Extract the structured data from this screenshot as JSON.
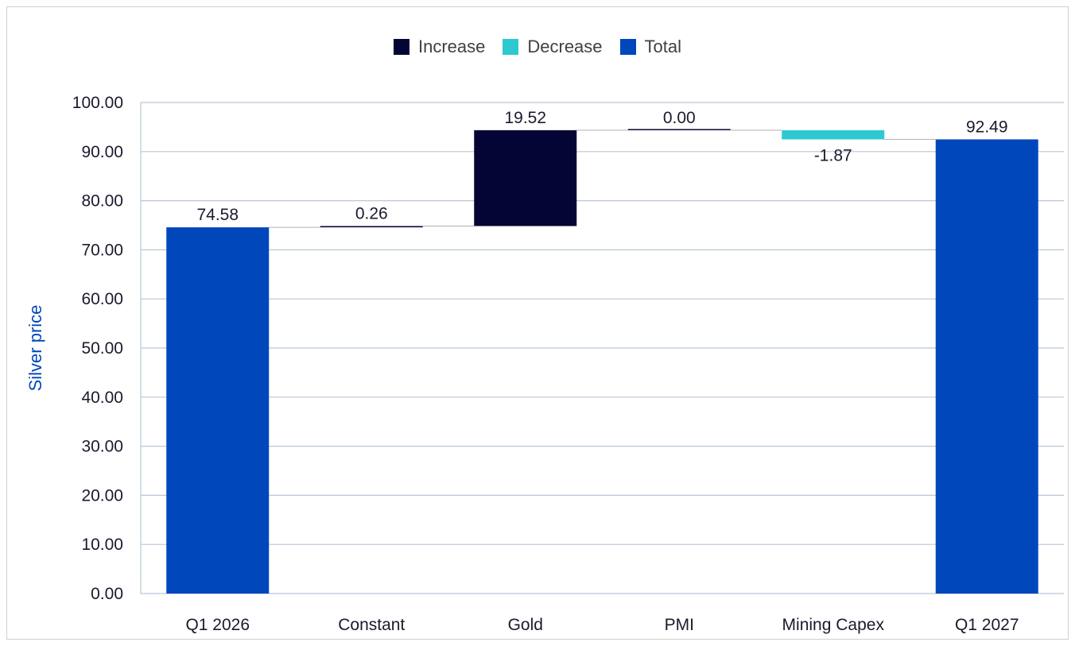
{
  "chart_data": {
    "type": "bar",
    "subtype": "waterfall",
    "title": "",
    "xlabel": "",
    "ylabel": "Silver price",
    "ylim": [
      0,
      100
    ],
    "yticks": [
      "0.00",
      "10.00",
      "20.00",
      "30.00",
      "40.00",
      "50.00",
      "60.00",
      "70.00",
      "80.00",
      "90.00",
      "100.00"
    ],
    "grid": true,
    "legend_position": "top-center",
    "legend": [
      {
        "name": "Increase",
        "color": "#050535"
      },
      {
        "name": "Decrease",
        "color": "#2ec9d0"
      },
      {
        "name": "Total",
        "color": "#0047bb"
      }
    ],
    "categories": [
      "Q1 2026",
      "Constant",
      "Gold",
      "PMI",
      "Mining Capex",
      "Q1 2027"
    ],
    "values": [
      74.58,
      0.26,
      19.52,
      0.0,
      -1.87,
      92.49
    ],
    "labels": [
      "74.58",
      "0.26",
      "19.52",
      "0.00",
      "-1.87",
      "92.49"
    ],
    "kinds": [
      "total",
      "increase",
      "increase",
      "increase",
      "decrease",
      "total"
    ]
  },
  "colors": {
    "increase": "#050535",
    "decrease": "#2ec9d0",
    "total": "#0047bb",
    "grid": "#b8c7d6",
    "axis_title": "#0047bb",
    "connector": "#b0b0b0"
  }
}
